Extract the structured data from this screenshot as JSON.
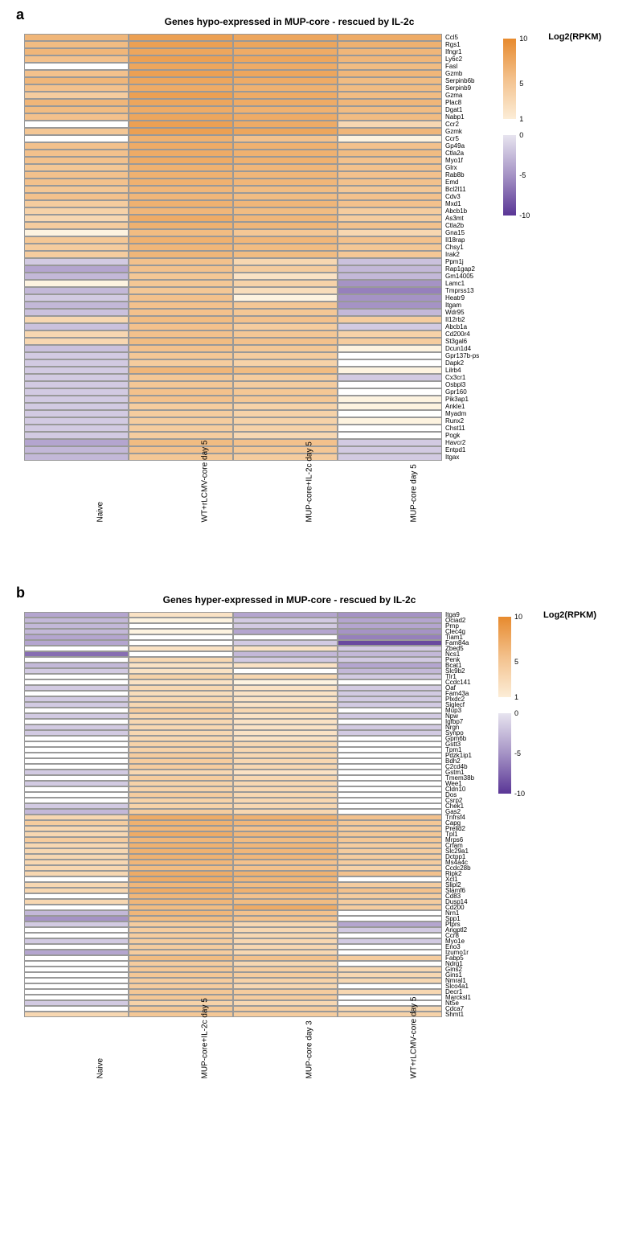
{
  "legend_title": "Log2(RPKM)",
  "colorscale": {
    "min": -11,
    "max": 11,
    "pos_ticks": [
      10,
      5,
      1
    ],
    "neg_ticks": [
      0,
      -5,
      -10
    ]
  },
  "panel_a": {
    "label": "a",
    "title": "Genes hypo-expressed in MUP-core - rescued by IL-2c",
    "columns": [
      "Naive",
      "WT+rLCMV-core day 5",
      "MUP-core+IL-2c day 5",
      "MUP-core day 5"
    ],
    "cell_height": 9.0,
    "genes": [
      "Ccl5",
      "Rgs1",
      "Ifngr1",
      "Ly6c2",
      "Fasl",
      "Gzmb",
      "Serpinb6b",
      "Serpinb9",
      "Gzma",
      "Plac8",
      "Dgat1",
      "Nabp1",
      "Ccr2",
      "Gzmk",
      "Ccr5",
      "Gp49a",
      "Ctla2a",
      "Myo1f",
      "Glrx",
      "Rab8b",
      "Emd",
      "Bcl2l11",
      "Cdv3",
      "Mxd1",
      "Abcb1b",
      "As3mt",
      "Ctla2b",
      "Gna15",
      "Il18rap",
      "Chsy1",
      "Irak2",
      "Ppm1j",
      "Rap1gap2",
      "Gm14005",
      "Lamc1",
      "Tmprss13",
      "Heatr9",
      "Itgam",
      "Wdr95",
      "Il12rb2",
      "Abcb1a",
      "Cd200r4",
      "St3gal6",
      "Dcun1d4",
      "Gpr137b-ps",
      "Dapk2",
      "Lilrb4",
      "Cx3cr1",
      "Osbpl3",
      "Gpr160",
      "Pik3ap1",
      "Ankle1",
      "Myadm",
      "Runx2",
      "Chst11",
      "Pogk",
      "Havcr2",
      "Entpd1",
      "Itgax"
    ],
    "values": [
      [
        6,
        8,
        7.5,
        7
      ],
      [
        5.5,
        8,
        7.5,
        6.5
      ],
      [
        6,
        7.5,
        7,
        6
      ],
      [
        5,
        8,
        7.5,
        6
      ],
      [
        0,
        7.5,
        7,
        5.5
      ],
      [
        5,
        8,
        7.5,
        6
      ],
      [
        6,
        7.5,
        7,
        5.5
      ],
      [
        5,
        7,
        6.5,
        5.5
      ],
      [
        4,
        8,
        7,
        5.5
      ],
      [
        6,
        7.5,
        7,
        6
      ],
      [
        5.5,
        7,
        6.5,
        5.5
      ],
      [
        5,
        7.5,
        7,
        5.5
      ],
      [
        0,
        8,
        7,
        3
      ],
      [
        4.5,
        8,
        7.5,
        6
      ],
      [
        0,
        6.5,
        5,
        0.5
      ],
      [
        5,
        7,
        6.5,
        5
      ],
      [
        5,
        7,
        6.5,
        5.5
      ],
      [
        5,
        7,
        6.5,
        5
      ],
      [
        4.5,
        6.5,
        6,
        5
      ],
      [
        5,
        6.5,
        6,
        5
      ],
      [
        5,
        6.5,
        6,
        5
      ],
      [
        4.5,
        6,
        5.5,
        4.5
      ],
      [
        5,
        6,
        5.5,
        5
      ],
      [
        4,
        6.5,
        6,
        5
      ],
      [
        3.5,
        6,
        5.5,
        4
      ],
      [
        3,
        7,
        6,
        4
      ],
      [
        4,
        6.5,
        6,
        5
      ],
      [
        0.5,
        5.5,
        4.5,
        3
      ],
      [
        4.5,
        6.5,
        6,
        5
      ],
      [
        4,
        6,
        5.5,
        4.5
      ],
      [
        4,
        6,
        5.5,
        4.5
      ],
      [
        -2,
        5,
        3,
        -2.5
      ],
      [
        -4,
        5,
        4,
        -3
      ],
      [
        -3,
        4.5,
        2,
        -3
      ],
      [
        0.5,
        4.5,
        3.5,
        -5
      ],
      [
        -3,
        4.5,
        2.5,
        -6
      ],
      [
        -2,
        5,
        0.5,
        -5
      ],
      [
        -3,
        5,
        4.5,
        -5
      ],
      [
        -2.5,
        5,
        4.5,
        -3
      ],
      [
        3,
        5.5,
        5,
        4
      ],
      [
        -2.5,
        5,
        4,
        -2
      ],
      [
        3,
        5,
        4.5,
        3.5
      ],
      [
        3,
        5.5,
        5,
        4
      ],
      [
        -2.5,
        5,
        4.5,
        0.5
      ],
      [
        -2,
        4.5,
        4,
        0
      ],
      [
        -2,
        4,
        3.5,
        0
      ],
      [
        -2,
        6,
        5.5,
        0.5
      ],
      [
        -2,
        4.5,
        4,
        -2
      ],
      [
        -2,
        4.5,
        4,
        0
      ],
      [
        -2,
        5,
        4.5,
        0
      ],
      [
        -2,
        5,
        4.5,
        0.5
      ],
      [
        -2,
        4,
        3.5,
        0.5
      ],
      [
        -2,
        4,
        3.5,
        0
      ],
      [
        -2,
        4,
        3.5,
        0.5
      ],
      [
        -2,
        4,
        3.5,
        0
      ],
      [
        -2,
        4,
        3,
        0
      ],
      [
        -4,
        5.5,
        5,
        -2
      ],
      [
        -3,
        5,
        4.5,
        -2
      ],
      [
        -3,
        4.5,
        4,
        -2
      ]
    ]
  },
  "panel_b": {
    "label": "b",
    "title": "Genes hyper-expressed in MUP-core - rescued by IL-2c",
    "columns": [
      "Naive",
      "MUP-core+IL-2c day 5",
      "MUP-core day 3",
      "WT+rLCMV-core day 5"
    ],
    "cell_height": 7.0,
    "genes": [
      "Itga9",
      "Ociad2",
      "Prnp",
      "Clec4g",
      "Tiam1",
      "Fam84a",
      "Zbed5",
      "Ncs1",
      "Penk",
      "Bcat1",
      "Slc9b2",
      "Tlr1",
      "Ccdc141",
      "Oaf",
      "Fam43a",
      "Plxdc2",
      "Siglecf",
      "Mup3",
      "Npw",
      "Igfbp7",
      "Nrgn",
      "Synpo",
      "Gpm6b",
      "Gstt3",
      "Tpm1",
      "Pdzk1ip1",
      "Bdh2",
      "C2cd4b",
      "Gstm1",
      "Tmem38b",
      "Wee1",
      "Cldn10",
      "Dos",
      "Csrp2",
      "Chek1",
      "Gas2",
      "Tnfrsf4",
      "Capg",
      "Prelid2",
      "Tpl1",
      "Mrps6",
      "Crfam",
      "Slc29a1",
      "Dctpp1",
      "Ms4a4c",
      "Ccdc28b",
      "Ripk2",
      "Xcl1",
      "Slipl2",
      "Slamf6",
      "Cd83",
      "Dusp14",
      "Cd200",
      "Nrn1",
      "Spp1",
      "Ptprs",
      "Angptl2",
      "Ccr8",
      "Myo1e",
      "Eno3",
      "Izumo1r",
      "Fabp5",
      "Ndrg1",
      "Gins2",
      "Gins1",
      "Nmral1",
      "Slco4a1",
      "Decr1",
      "Marcksl1",
      "Nt5e",
      "Cdca7",
      "Shmt1"
    ],
    "values": [
      [
        -4,
        2,
        -4,
        -5
      ],
      [
        -3,
        0.5,
        -2,
        -4
      ],
      [
        -3,
        0,
        -2,
        -4
      ],
      [
        -3,
        0.5,
        -4,
        -5
      ],
      [
        -4,
        0,
        0,
        -6
      ],
      [
        -4,
        0,
        -2,
        -9
      ],
      [
        0,
        2,
        2,
        -2
      ],
      [
        -7,
        0,
        -3,
        -3
      ],
      [
        0,
        3,
        -2,
        -2
      ],
      [
        -3,
        2,
        2,
        -4
      ],
      [
        -2,
        2,
        0,
        -3
      ],
      [
        0,
        3.5,
        3,
        -2
      ],
      [
        0,
        2,
        0.5,
        0
      ],
      [
        -2,
        3,
        2,
        -2
      ],
      [
        0,
        2.5,
        2,
        -2
      ],
      [
        -2,
        3,
        2,
        -2
      ],
      [
        -2,
        3,
        2,
        -2
      ],
      [
        0,
        4,
        3,
        0
      ],
      [
        -2,
        3,
        2,
        -2
      ],
      [
        0,
        3,
        2,
        0
      ],
      [
        -2,
        3,
        2,
        -2
      ],
      [
        -2,
        3,
        2,
        -2
      ],
      [
        0,
        3,
        2,
        0
      ],
      [
        0,
        3.5,
        3,
        0
      ],
      [
        0,
        3.5,
        3,
        0
      ],
      [
        0,
        4,
        3,
        0
      ],
      [
        0,
        4,
        3,
        0
      ],
      [
        0,
        4,
        3,
        0
      ],
      [
        -2,
        3,
        2,
        0
      ],
      [
        0,
        4,
        3,
        0
      ],
      [
        -2,
        3.5,
        3,
        0
      ],
      [
        0,
        3.5,
        3,
        0
      ],
      [
        0,
        4,
        3,
        0
      ],
      [
        0,
        3.5,
        3,
        0
      ],
      [
        -2,
        3.5,
        3,
        0
      ],
      [
        -3,
        4,
        3,
        0
      ],
      [
        3,
        7,
        6.5,
        5
      ],
      [
        4,
        6.5,
        6,
        4.5
      ],
      [
        3,
        6,
        5,
        4
      ],
      [
        3,
        7,
        6,
        4.5
      ],
      [
        4,
        6,
        5.5,
        4.5
      ],
      [
        3,
        6.5,
        6,
        4
      ],
      [
        3,
        6.5,
        6,
        4
      ],
      [
        3,
        6.5,
        6,
        4
      ],
      [
        3,
        6,
        5,
        4
      ],
      [
        3,
        5.5,
        5,
        3.5
      ],
      [
        3,
        7,
        6.5,
        5
      ],
      [
        0,
        7,
        6,
        0
      ],
      [
        3,
        6,
        5.5,
        4
      ],
      [
        3,
        7,
        6.5,
        5
      ],
      [
        0,
        6,
        5,
        4
      ],
      [
        3,
        6,
        5.5,
        4
      ],
      [
        0,
        5.5,
        7,
        4
      ],
      [
        -3,
        6,
        5,
        0
      ],
      [
        -5,
        5.5,
        5,
        0
      ],
      [
        -2,
        4,
        3,
        -4
      ],
      [
        0,
        4,
        3,
        -2
      ],
      [
        0,
        4,
        3,
        0
      ],
      [
        -2,
        4,
        3,
        -2
      ],
      [
        0,
        4,
        3,
        0
      ],
      [
        -4,
        4,
        3,
        0
      ],
      [
        0,
        5.5,
        5,
        4
      ],
      [
        0,
        4,
        3,
        0
      ],
      [
        0,
        4.5,
        4,
        3
      ],
      [
        0,
        4.5,
        4,
        3
      ],
      [
        0,
        4,
        3.5,
        3
      ],
      [
        0,
        4,
        3,
        0
      ],
      [
        0,
        4.5,
        4,
        3
      ],
      [
        0,
        4.5,
        4,
        0
      ],
      [
        -2,
        3.5,
        3,
        0
      ],
      [
        0,
        4.5,
        4,
        3
      ],
      [
        3,
        4.5,
        4,
        3.5
      ]
    ]
  }
}
